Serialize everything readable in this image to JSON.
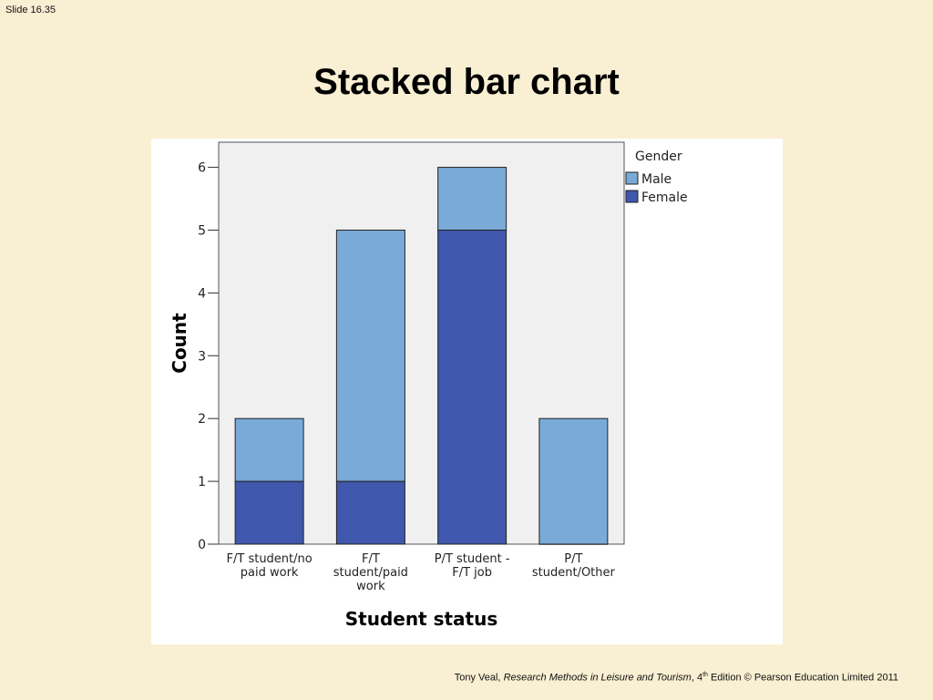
{
  "slide": {
    "number": "Slide 16.35",
    "title": "Stacked bar chart"
  },
  "footer": {
    "author": "Tony Veal, ",
    "book": "Research Methods in Leisure and Tourism",
    "edition_pre": ", 4",
    "edition_sup": "th",
    "edition_post": " Edition © Pearson Education Limited 2011"
  },
  "chart_data": {
    "type": "bar",
    "stacked": true,
    "xlabel": "Student status",
    "ylabel": "Count",
    "ylim": [
      0,
      6.4
    ],
    "yticks": [
      0,
      1,
      2,
      3,
      4,
      5,
      6
    ],
    "grid": false,
    "legend": {
      "title": "Gender",
      "position": "right"
    },
    "categories": [
      [
        "F/T student/no",
        "paid work"
      ],
      [
        "F/T",
        "student/paid",
        "work"
      ],
      [
        "P/T student -",
        "F/T job"
      ],
      [
        "P/T",
        "student/Other"
      ]
    ],
    "series": [
      {
        "name": "Female",
        "values": [
          1,
          1,
          5,
          0
        ],
        "color": "#3f57ac"
      },
      {
        "name": "Male",
        "values": [
          1,
          4,
          1,
          2
        ],
        "color": "#7aaad8"
      }
    ],
    "legend_order": [
      "Male",
      "Female"
    ],
    "plot_background": "#f0f0f0"
  }
}
